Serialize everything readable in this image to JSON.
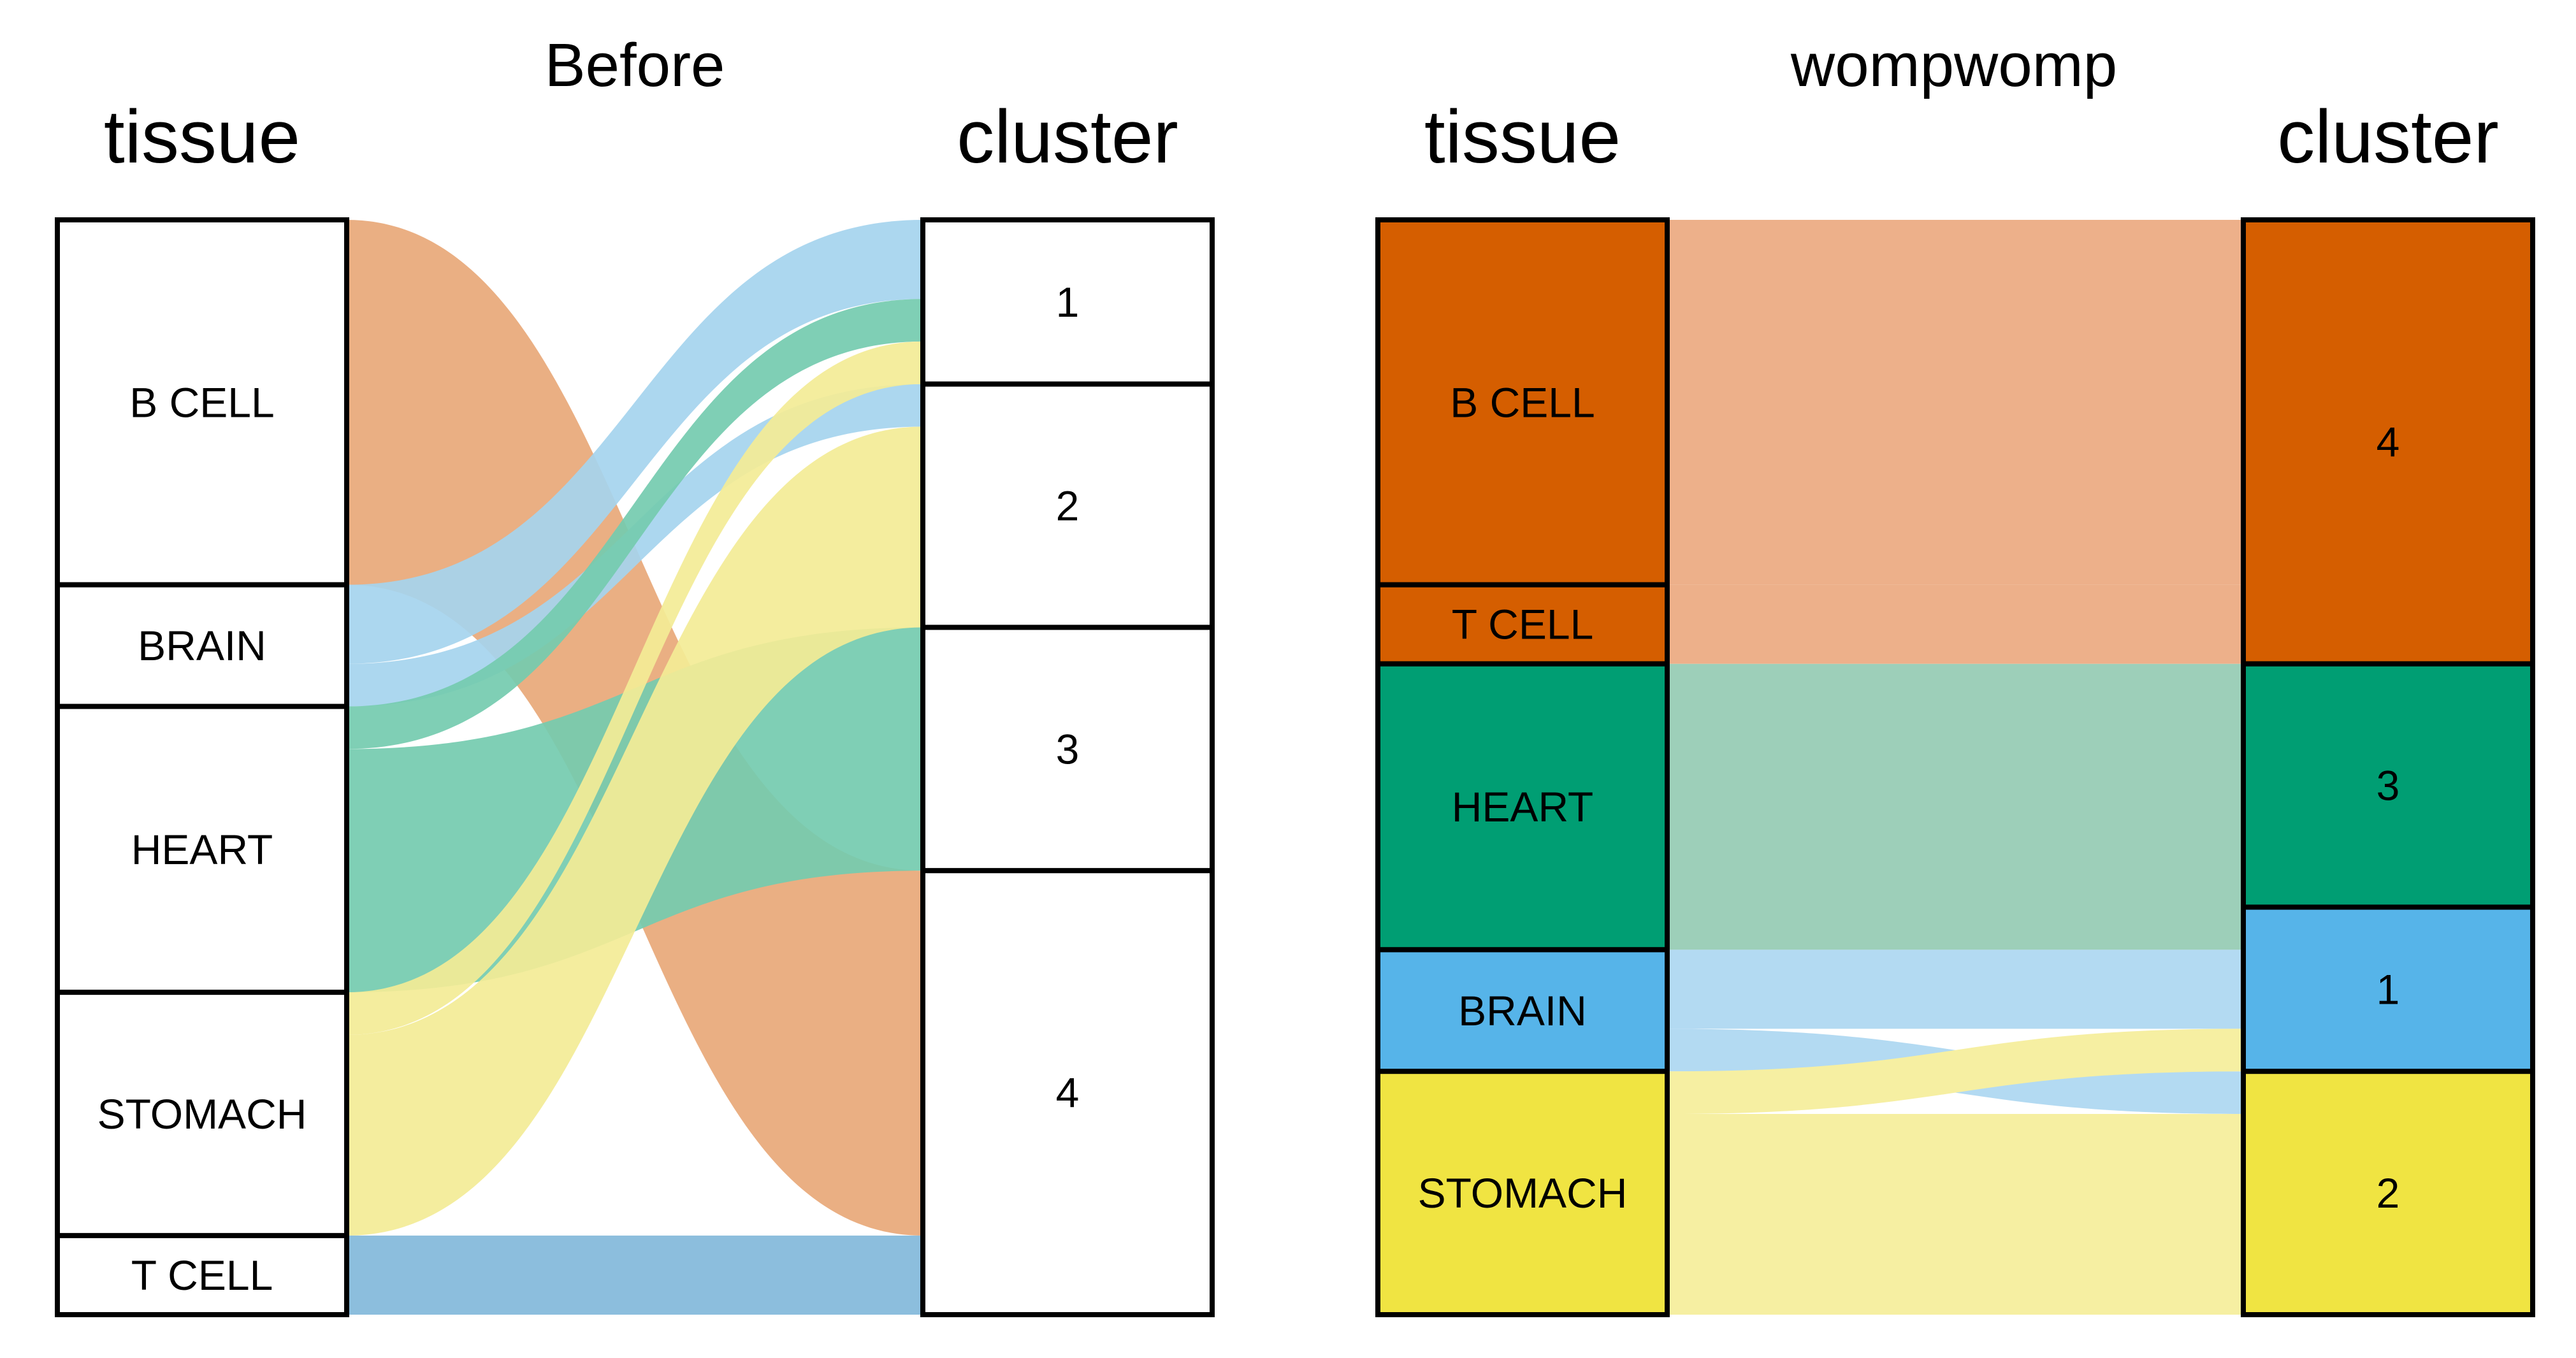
{
  "chart_data": [
    {
      "type": "sankey",
      "title": "Before",
      "left_axis_label": "tissue",
      "right_axis_label": "cluster",
      "colored_nodes": false,
      "left_nodes": [
        {
          "id": "B CELL",
          "label": "B CELL",
          "value": 30
        },
        {
          "id": "BRAIN",
          "label": "BRAIN",
          "value": 10
        },
        {
          "id": "HEART",
          "label": "HEART",
          "value": 23.5
        },
        {
          "id": "STOMACH",
          "label": "STOMACH",
          "value": 20
        },
        {
          "id": "T CELL",
          "label": "T CELL",
          "value": 6.5
        }
      ],
      "right_nodes": [
        {
          "id": "1",
          "label": "1",
          "value": 13.5
        },
        {
          "id": "2",
          "label": "2",
          "value": 20
        },
        {
          "id": "3",
          "label": "3",
          "value": 20
        },
        {
          "id": "4",
          "label": "4",
          "value": 36.5
        }
      ],
      "flows": [
        {
          "from": "B CELL",
          "to": "4",
          "value": 30,
          "color": "#E8A878"
        },
        {
          "from": "BRAIN",
          "to": "1",
          "value": 6.5,
          "color": "#A5D4EE"
        },
        {
          "from": "BRAIN",
          "to": "2",
          "value": 3.5,
          "color": "#A5D4EE"
        },
        {
          "from": "HEART",
          "to": "1",
          "value": 3.5,
          "color": "#74CBAF"
        },
        {
          "from": "HEART",
          "to": "3",
          "value": 20,
          "color": "#74CBAF"
        },
        {
          "from": "STOMACH",
          "to": "1",
          "value": 3.5,
          "color": "#F3EC96"
        },
        {
          "from": "STOMACH",
          "to": "2",
          "value": 16.5,
          "color": "#F3EC96"
        },
        {
          "from": "T CELL",
          "to": "4",
          "value": 6.5,
          "color": "#82B8DA"
        }
      ]
    },
    {
      "type": "sankey",
      "title": "wompwomp",
      "left_axis_label": "tissue",
      "right_axis_label": "cluster",
      "colored_nodes": true,
      "left_nodes": [
        {
          "id": "B CELL",
          "label": "B CELL",
          "value": 30,
          "color": "#D55E00"
        },
        {
          "id": "T CELL",
          "label": "T CELL",
          "value": 6.5,
          "color": "#D55E00"
        },
        {
          "id": "HEART",
          "label": "HEART",
          "value": 23.5,
          "color": "#009E73"
        },
        {
          "id": "BRAIN",
          "label": "BRAIN",
          "value": 10,
          "color": "#56B4E9"
        },
        {
          "id": "STOMACH",
          "label": "STOMACH",
          "value": 20,
          "color": "#F0E442"
        }
      ],
      "right_nodes": [
        {
          "id": "4",
          "label": "4",
          "value": 36.5,
          "color": "#D55E00"
        },
        {
          "id": "3",
          "label": "3",
          "value": 20,
          "color": "#009E73"
        },
        {
          "id": "1",
          "label": "1",
          "value": 13.5,
          "color": "#56B4E9"
        },
        {
          "id": "2",
          "label": "2",
          "value": 20,
          "color": "#F0E442"
        }
      ],
      "flows": [
        {
          "from": "B CELL",
          "to": "4",
          "value": 30,
          "color": "#EDB08A"
        },
        {
          "from": "T CELL",
          "to": "4",
          "value": 6.5,
          "color": "#EDB08A"
        },
        {
          "from": "HEART",
          "to": "3",
          "value": 20,
          "color": "#9DCFB9"
        },
        {
          "from": "HEART",
          "to": "1",
          "value": 3.5,
          "color": "#9DCFB9"
        },
        {
          "from": "BRAIN",
          "to": "1",
          "value": 6.5,
          "color": "#B3DAF2"
        },
        {
          "from": "BRAIN",
          "to": "2",
          "value": 3.5,
          "color": "#B3DAF2"
        },
        {
          "from": "STOMACH",
          "to": "1",
          "value": 3.5,
          "color": "#F6EFA2"
        },
        {
          "from": "STOMACH",
          "to": "2",
          "value": 16.5,
          "color": "#F6EFA2"
        }
      ]
    }
  ]
}
